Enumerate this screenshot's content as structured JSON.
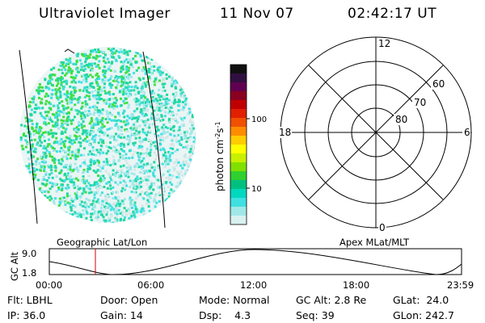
{
  "header": {
    "title": "Ultraviolet Imager",
    "date": "11 Nov 07",
    "time": "02:42:17 UT"
  },
  "colorbar": {
    "unit_label": "photon cm",
    "unit_sup1": "-2",
    "unit_s": "s",
    "unit_sup2": "-1",
    "ticks": [
      "100",
      "10"
    ],
    "colors": [
      "#101010",
      "#301040",
      "#600050",
      "#8a0020",
      "#c00000",
      "#e02000",
      "#f05000",
      "#ff8c00",
      "#ffcc00",
      "#ffff00",
      "#c8f000",
      "#80e000",
      "#30d030",
      "#00c080",
      "#00d8c0",
      "#40e0e0",
      "#a0e8e8",
      "#d8f0f0"
    ]
  },
  "polar_plot": {
    "lat_labels": [
      "60",
      "70",
      "80"
    ],
    "mlt_labels": {
      "top": "12",
      "left": "18",
      "right": "6",
      "bottom": "0"
    }
  },
  "timeline": {
    "left_label": "Geographic Lat/Lon",
    "right_label": "Apex MLat/MLT",
    "axis_label": "GC Alt",
    "y_ticks": [
      "9.0",
      "1.8"
    ],
    "x_ticks": [
      "00:00",
      "06:00",
      "12:00",
      "18:00",
      "23:59"
    ]
  },
  "footer": {
    "flt": "Flt: LBHL",
    "door": "Door: Open",
    "mode": "Mode: Normal",
    "gc_alt": "GC Alt: 2.8 Re",
    "glat": "GLat:  24.0",
    "ip": "IP: 36.0",
    "gain": "Gain: 14",
    "dsp": "Dsp:    4.3",
    "seq": "Seq: 39",
    "glon": "GLon: 242.7"
  }
}
